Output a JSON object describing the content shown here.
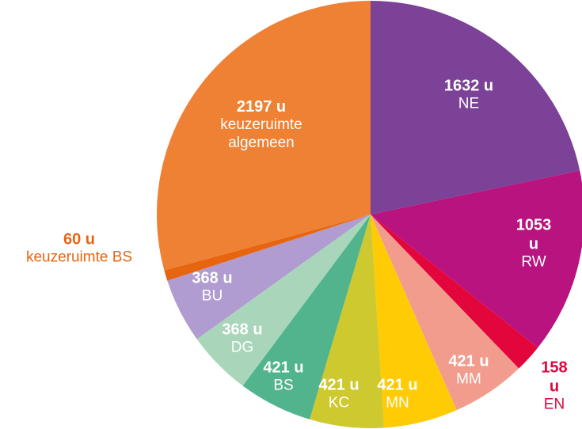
{
  "chart_data": {
    "type": "pie",
    "categories": [
      "NE",
      "RW",
      "EN",
      "MM",
      "MN",
      "KC",
      "BS",
      "DG",
      "BU",
      "keuzeruimte BS",
      "keuzeruimte algemeen"
    ],
    "values": [
      1632,
      1053,
      158,
      421,
      421,
      421,
      421,
      368,
      368,
      60,
      2197
    ],
    "value_labels": [
      "1632 u",
      "1053 u",
      "158 u",
      "421 u",
      "421 u",
      "421 u",
      "421 u",
      "368 u",
      "368 u",
      "60 u",
      "2197 u"
    ],
    "colors": [
      "#7b4297",
      "#b8137f",
      "#e2063c",
      "#f29c8d",
      "#fecb05",
      "#cdc92f",
      "#52b48d",
      "#a9d6ba",
      "#b09cd0",
      "#e8650f",
      "#ee8134"
    ]
  }
}
